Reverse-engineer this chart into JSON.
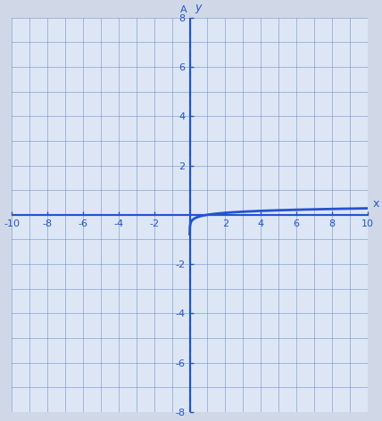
{
  "title": "",
  "xlabel": "x",
  "ylabel": "y",
  "xlim": [
    -10,
    10
  ],
  "ylim": [
    -8,
    8
  ],
  "xticks": [
    -10,
    -8,
    -6,
    -4,
    -2,
    2,
    4,
    6,
    8,
    10
  ],
  "yticks": [
    -8,
    -6,
    -4,
    -2,
    2,
    4,
    6,
    8
  ],
  "curve_color": "#2255cc",
  "asymptote_color": "#2255cc",
  "asymptote_x": 0,
  "background_color": "#dce6f5",
  "grid_color": "#5577bb",
  "axis_color": "#2255cc",
  "log_base": 3,
  "scale_factor": 0.125,
  "x_start": 0.001,
  "x_end": 10,
  "figsize": [
    4.28,
    4.72
  ],
  "dpi": 100
}
